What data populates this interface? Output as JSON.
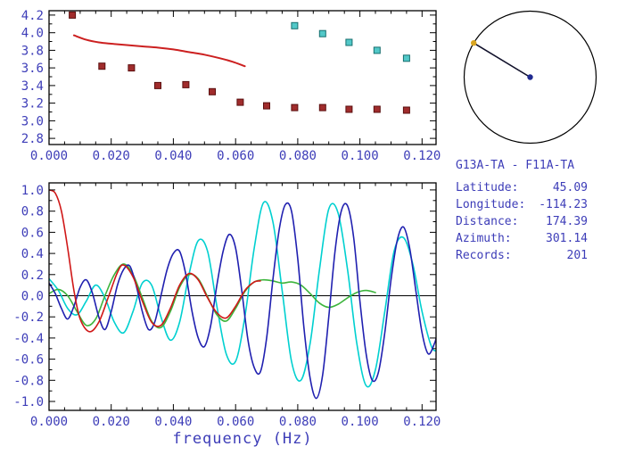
{
  "colors": {
    "background": "#ffffff",
    "axis": "#000000",
    "text": "#3d3db8"
  },
  "info_panel": {
    "title": "G13A-TA - F11A-TA",
    "rows": [
      {
        "label": "Latitude:",
        "value": "45.09"
      },
      {
        "label": "Longitude:",
        "value": "-114.23"
      },
      {
        "label": "Distance:",
        "value": "174.39"
      },
      {
        "label": "Azimuth:",
        "value": "301.14"
      },
      {
        "label": "Records:",
        "value": "201"
      }
    ]
  },
  "chart_data": [
    {
      "id": "dispersion",
      "type": "scatter",
      "title": "",
      "xlabel": "",
      "ylabel": "",
      "xlim": [
        0,
        0.1245
      ],
      "ylim": [
        2.73,
        4.25
      ],
      "xticks": [
        0,
        0.02,
        0.04,
        0.06,
        0.08,
        0.1,
        0.12
      ],
      "xtick_labels": [
        "0.000",
        "0.020",
        "0.040",
        "0.060",
        "0.080",
        "0.100",
        "0.120"
      ],
      "x_minor_step": 0.005,
      "yticks": [
        2.8,
        3.0,
        3.2,
        3.4,
        3.6,
        3.8,
        4.0,
        4.2
      ],
      "ytick_labels": [
        "2.8",
        "3.0",
        "3.2",
        "3.4",
        "3.6",
        "3.8",
        "4.0",
        "4.2"
      ],
      "y_minor_step": 0.1,
      "grid": false,
      "series": [
        {
          "name": "reference-dispersion-curve",
          "kind": "line",
          "color": "#cc2020",
          "width": 2,
          "points": [
            [
              0.008,
              3.97
            ],
            [
              0.012,
              3.92
            ],
            [
              0.016,
              3.89
            ],
            [
              0.02,
              3.875
            ],
            [
              0.025,
              3.86
            ],
            [
              0.03,
              3.845
            ],
            [
              0.035,
              3.83
            ],
            [
              0.04,
              3.81
            ],
            [
              0.045,
              3.78
            ],
            [
              0.05,
              3.75
            ],
            [
              0.055,
              3.71
            ],
            [
              0.059,
              3.67
            ],
            [
              0.063,
              3.62
            ]
          ]
        },
        {
          "name": "group-velocity-picks-red",
          "kind": "scatter",
          "marker": "square",
          "color": "#a02c2c",
          "edge": "#5a0f0f",
          "size": 7,
          "points": [
            [
              0.0075,
              4.2
            ],
            [
              0.017,
              3.62
            ],
            [
              0.0265,
              3.6
            ],
            [
              0.035,
              3.4
            ],
            [
              0.044,
              3.41
            ],
            [
              0.0525,
              3.33
            ],
            [
              0.0615,
              3.21
            ],
            [
              0.07,
              3.17
            ],
            [
              0.079,
              3.15
            ],
            [
              0.088,
              3.15
            ],
            [
              0.0965,
              3.13
            ],
            [
              0.1055,
              3.13
            ],
            [
              0.115,
              3.12
            ]
          ]
        },
        {
          "name": "group-velocity-picks-cyan",
          "kind": "scatter",
          "marker": "square",
          "color": "#52c8c8",
          "edge": "#176e6e",
          "size": 7,
          "points": [
            [
              0.079,
              4.08
            ],
            [
              0.088,
              3.99
            ],
            [
              0.0965,
              3.89
            ],
            [
              0.1055,
              3.8
            ],
            [
              0.115,
              3.71
            ]
          ]
        }
      ]
    },
    {
      "id": "waveforms",
      "type": "line",
      "title": "",
      "xlabel": "frequency (Hz)",
      "ylabel": "",
      "xlim": [
        0,
        0.1245
      ],
      "ylim": [
        -1.084,
        1.067
      ],
      "xticks": [
        0,
        0.02,
        0.04,
        0.06,
        0.08,
        0.1,
        0.12
      ],
      "xtick_labels": [
        "0.000",
        "0.020",
        "0.040",
        "0.060",
        "0.080",
        "0.100",
        "0.120"
      ],
      "x_minor_step": 0.005,
      "yticks": [
        1.0,
        0.8,
        0.6,
        0.4,
        0.2,
        0.0,
        -0.2,
        -0.4,
        -0.6,
        -0.8,
        -1.0
      ],
      "ytick_labels": [
        "1.0",
        "0.8",
        "0.6",
        "0.4",
        "0.2",
        "0.0",
        "-0.2",
        "-0.4",
        "-0.6",
        "-0.8",
        "-1.0"
      ],
      "y_minor_step": 0.1,
      "zero_line": true,
      "grid": false,
      "series": [
        {
          "name": "trace-cyan",
          "kind": "line",
          "color": "#00d0d0",
          "width": 1.6,
          "points": [
            [
              0,
              0.16
            ],
            [
              0.003,
              0.05
            ],
            [
              0.006,
              -0.12
            ],
            [
              0.009,
              -0.18
            ],
            [
              0.012,
              -0.05
            ],
            [
              0.015,
              0.1
            ],
            [
              0.018,
              -0.02
            ],
            [
              0.021,
              -0.25
            ],
            [
              0.024,
              -0.35
            ],
            [
              0.027,
              -0.15
            ],
            [
              0.03,
              0.12
            ],
            [
              0.033,
              0.1
            ],
            [
              0.036,
              -0.2
            ],
            [
              0.039,
              -0.42
            ],
            [
              0.042,
              -0.25
            ],
            [
              0.045,
              0.2
            ],
            [
              0.048,
              0.52
            ],
            [
              0.051,
              0.42
            ],
            [
              0.054,
              -0.1
            ],
            [
              0.057,
              -0.55
            ],
            [
              0.06,
              -0.62
            ],
            [
              0.063,
              -0.2
            ],
            [
              0.066,
              0.45
            ],
            [
              0.069,
              0.88
            ],
            [
              0.072,
              0.7
            ],
            [
              0.075,
              0.05
            ],
            [
              0.078,
              -0.62
            ],
            [
              0.081,
              -0.8
            ],
            [
              0.084,
              -0.45
            ],
            [
              0.087,
              0.25
            ],
            [
              0.09,
              0.82
            ],
            [
              0.093,
              0.78
            ],
            [
              0.096,
              0.25
            ],
            [
              0.099,
              -0.45
            ],
            [
              0.102,
              -0.85
            ],
            [
              0.105,
              -0.7
            ],
            [
              0.108,
              -0.15
            ],
            [
              0.111,
              0.42
            ],
            [
              0.114,
              0.55
            ],
            [
              0.117,
              0.3
            ],
            [
              0.12,
              -0.15
            ],
            [
              0.123,
              -0.48
            ],
            [
              0.125,
              -0.52
            ]
          ]
        },
        {
          "name": "trace-green",
          "kind": "line",
          "color": "#3cb43c",
          "width": 1.6,
          "points": [
            [
              0,
              0.02
            ],
            [
              0.003,
              0.06
            ],
            [
              0.006,
              0.0
            ],
            [
              0.009,
              -0.15
            ],
            [
              0.012,
              -0.28
            ],
            [
              0.015,
              -0.22
            ],
            [
              0.018,
              0.0
            ],
            [
              0.021,
              0.2
            ],
            [
              0.024,
              0.3
            ],
            [
              0.027,
              0.2
            ],
            [
              0.03,
              -0.02
            ],
            [
              0.033,
              -0.24
            ],
            [
              0.036,
              -0.3
            ],
            [
              0.039,
              -0.15
            ],
            [
              0.042,
              0.08
            ],
            [
              0.045,
              0.2
            ],
            [
              0.048,
              0.16
            ],
            [
              0.051,
              -0.01
            ],
            [
              0.054,
              -0.18
            ],
            [
              0.057,
              -0.24
            ],
            [
              0.06,
              -0.12
            ],
            [
              0.063,
              0.04
            ],
            [
              0.066,
              0.13
            ],
            [
              0.069,
              0.15
            ],
            [
              0.072,
              0.14
            ],
            [
              0.075,
              0.12
            ],
            [
              0.078,
              0.13
            ],
            [
              0.081,
              0.1
            ],
            [
              0.084,
              0.02
            ],
            [
              0.087,
              -0.07
            ],
            [
              0.09,
              -0.11
            ],
            [
              0.093,
              -0.08
            ],
            [
              0.096,
              -0.02
            ],
            [
              0.099,
              0.03
            ],
            [
              0.102,
              0.05
            ],
            [
              0.105,
              0.03
            ]
          ]
        },
        {
          "name": "trace-blue",
          "kind": "line",
          "color": "#2020b0",
          "width": 1.6,
          "points": [
            [
              0,
              0.12
            ],
            [
              0.002,
              0.02
            ],
            [
              0.004,
              -0.12
            ],
            [
              0.006,
              -0.22
            ],
            [
              0.008,
              -0.1
            ],
            [
              0.01,
              0.08
            ],
            [
              0.012,
              0.15
            ],
            [
              0.014,
              0.02
            ],
            [
              0.016,
              -0.2
            ],
            [
              0.018,
              -0.32
            ],
            [
              0.02,
              -0.15
            ],
            [
              0.022,
              0.1
            ],
            [
              0.024,
              0.25
            ],
            [
              0.026,
              0.28
            ],
            [
              0.028,
              0.1
            ],
            [
              0.03,
              -0.15
            ],
            [
              0.032,
              -0.32
            ],
            [
              0.034,
              -0.25
            ],
            [
              0.036,
              0.0
            ],
            [
              0.038,
              0.25
            ],
            [
              0.04,
              0.4
            ],
            [
              0.042,
              0.42
            ],
            [
              0.044,
              0.2
            ],
            [
              0.046,
              -0.15
            ],
            [
              0.048,
              -0.4
            ],
            [
              0.05,
              -0.48
            ],
            [
              0.052,
              -0.28
            ],
            [
              0.054,
              0.1
            ],
            [
              0.056,
              0.42
            ],
            [
              0.058,
              0.58
            ],
            [
              0.06,
              0.45
            ],
            [
              0.062,
              0.05
            ],
            [
              0.064,
              -0.42
            ],
            [
              0.066,
              -0.68
            ],
            [
              0.068,
              -0.72
            ],
            [
              0.07,
              -0.4
            ],
            [
              0.072,
              0.15
            ],
            [
              0.074,
              0.62
            ],
            [
              0.076,
              0.86
            ],
            [
              0.078,
              0.8
            ],
            [
              0.08,
              0.35
            ],
            [
              0.082,
              -0.3
            ],
            [
              0.084,
              -0.78
            ],
            [
              0.086,
              -0.97
            ],
            [
              0.088,
              -0.75
            ],
            [
              0.09,
              -0.2
            ],
            [
              0.092,
              0.42
            ],
            [
              0.094,
              0.8
            ],
            [
              0.096,
              0.85
            ],
            [
              0.098,
              0.55
            ],
            [
              0.1,
              -0.05
            ],
            [
              0.102,
              -0.55
            ],
            [
              0.104,
              -0.8
            ],
            [
              0.106,
              -0.72
            ],
            [
              0.108,
              -0.35
            ],
            [
              0.11,
              0.15
            ],
            [
              0.112,
              0.52
            ],
            [
              0.114,
              0.65
            ],
            [
              0.116,
              0.45
            ],
            [
              0.118,
              0.05
            ],
            [
              0.12,
              -0.35
            ],
            [
              0.122,
              -0.55
            ],
            [
              0.124,
              -0.45
            ],
            [
              0.125,
              -0.35
            ]
          ]
        },
        {
          "name": "trace-red",
          "kind": "line",
          "color": "#d01818",
          "width": 1.6,
          "points": [
            [
              0,
              1.0
            ],
            [
              0.002,
              0.97
            ],
            [
              0.004,
              0.8
            ],
            [
              0.006,
              0.45
            ],
            [
              0.008,
              0.05
            ],
            [
              0.01,
              -0.22
            ],
            [
              0.013,
              -0.34
            ],
            [
              0.016,
              -0.25
            ],
            [
              0.019,
              -0.02
            ],
            [
              0.022,
              0.22
            ],
            [
              0.024,
              0.29
            ],
            [
              0.027,
              0.18
            ],
            [
              0.03,
              -0.05
            ],
            [
              0.033,
              -0.25
            ],
            [
              0.036,
              -0.28
            ],
            [
              0.039,
              -0.12
            ],
            [
              0.042,
              0.1
            ],
            [
              0.045,
              0.21
            ],
            [
              0.048,
              0.15
            ],
            [
              0.051,
              -0.02
            ],
            [
              0.054,
              -0.16
            ],
            [
              0.057,
              -0.21
            ],
            [
              0.06,
              -0.1
            ],
            [
              0.063,
              0.05
            ],
            [
              0.066,
              0.13
            ],
            [
              0.068,
              0.14
            ]
          ]
        }
      ]
    },
    {
      "id": "azimuth-dial",
      "type": "dial",
      "azimuth_deg": 301.14,
      "line_color": "#10102a",
      "edge_dot_color": "#d9a520",
      "center_dot_color": "#202a90"
    }
  ]
}
